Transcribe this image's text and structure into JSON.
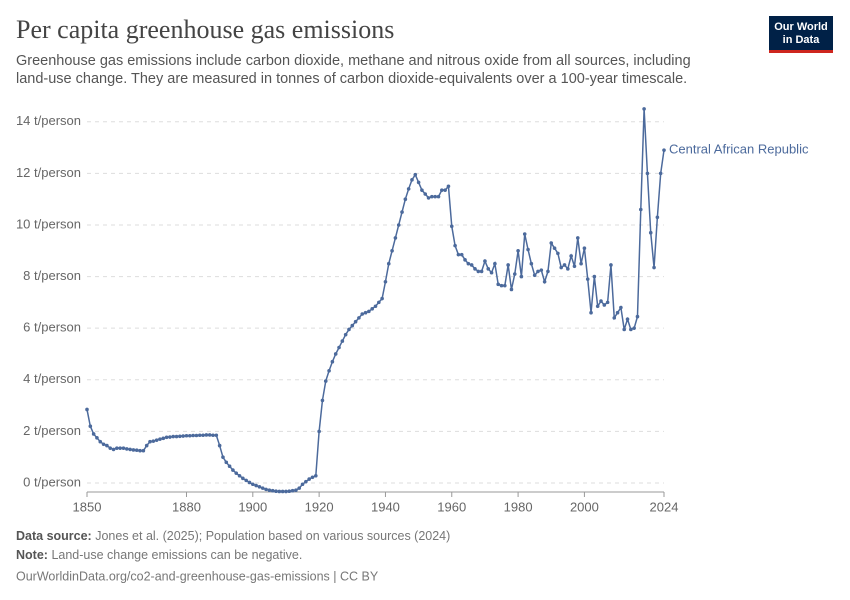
{
  "logo": [
    "Our World",
    "in Data"
  ],
  "chart_data": {
    "type": "line",
    "title": "Per capita greenhouse gas emissions",
    "subtitle": [
      "Greenhouse gas emissions include carbon dioxide, methane and nitrous oxide from all sources, including",
      "land-use change. They are measured in tonnes of carbon dioxide-equivalents over a 100-year timescale."
    ],
    "x": [
      1850,
      1851,
      1852,
      1853,
      1854,
      1855,
      1856,
      1857,
      1858,
      1859,
      1860,
      1861,
      1862,
      1863,
      1864,
      1865,
      1866,
      1867,
      1868,
      1869,
      1870,
      1871,
      1872,
      1873,
      1874,
      1875,
      1876,
      1877,
      1878,
      1879,
      1880,
      1881,
      1882,
      1883,
      1884,
      1885,
      1886,
      1887,
      1888,
      1889,
      1890,
      1891,
      1892,
      1893,
      1894,
      1895,
      1896,
      1897,
      1898,
      1899,
      1900,
      1901,
      1902,
      1903,
      1904,
      1905,
      1906,
      1907,
      1908,
      1909,
      1910,
      1911,
      1912,
      1913,
      1914,
      1915,
      1916,
      1917,
      1918,
      1919,
      1920,
      1921,
      1922,
      1923,
      1924,
      1925,
      1926,
      1927,
      1928,
      1929,
      1930,
      1931,
      1932,
      1933,
      1934,
      1935,
      1936,
      1937,
      1938,
      1939,
      1940,
      1941,
      1942,
      1943,
      1944,
      1945,
      1946,
      1947,
      1948,
      1949,
      1950,
      1951,
      1952,
      1953,
      1954,
      1955,
      1956,
      1957,
      1958,
      1959,
      1960,
      1961,
      1962,
      1963,
      1964,
      1965,
      1966,
      1967,
      1968,
      1969,
      1970,
      1971,
      1972,
      1973,
      1974,
      1975,
      1976,
      1977,
      1978,
      1979,
      1980,
      1981,
      1982,
      1983,
      1984,
      1985,
      1986,
      1987,
      1988,
      1989,
      1990,
      1991,
      1992,
      1993,
      1994,
      1995,
      1996,
      1997,
      1998,
      1999,
      2000,
      2001,
      2002,
      2003,
      2004,
      2005,
      2006,
      2007,
      2008,
      2009,
      2010,
      2011,
      2012,
      2013,
      2014,
      2015,
      2016,
      2017,
      2018,
      2019,
      2020,
      2021,
      2022,
      2023,
      2024
    ],
    "series": [
      {
        "name": "Central African Republic",
        "color": "#4c6a9c",
        "values": [
          2.85,
          2.2,
          1.9,
          1.75,
          1.6,
          1.5,
          1.45,
          1.35,
          1.3,
          1.35,
          1.35,
          1.35,
          1.32,
          1.3,
          1.28,
          1.27,
          1.25,
          1.25,
          1.45,
          1.6,
          1.62,
          1.66,
          1.7,
          1.73,
          1.77,
          1.78,
          1.8,
          1.8,
          1.81,
          1.82,
          1.83,
          1.83,
          1.84,
          1.84,
          1.85,
          1.85,
          1.86,
          1.86,
          1.85,
          1.85,
          1.45,
          1.0,
          0.8,
          0.65,
          0.5,
          0.38,
          0.28,
          0.18,
          0.1,
          0.02,
          -0.05,
          -0.1,
          -0.15,
          -0.2,
          -0.25,
          -0.28,
          -0.3,
          -0.32,
          -0.33,
          -0.33,
          -0.33,
          -0.32,
          -0.3,
          -0.28,
          -0.2,
          -0.05,
          0.05,
          0.15,
          0.22,
          0.28,
          2.0,
          3.2,
          3.95,
          4.35,
          4.7,
          5.0,
          5.25,
          5.5,
          5.75,
          5.95,
          6.1,
          6.25,
          6.4,
          6.55,
          6.6,
          6.65,
          6.75,
          6.85,
          7.0,
          7.15,
          7.8,
          8.5,
          9.0,
          9.5,
          10.0,
          10.5,
          11.0,
          11.4,
          11.75,
          11.95,
          11.65,
          11.35,
          11.2,
          11.05,
          11.1,
          11.1,
          11.1,
          11.35,
          11.35,
          11.5,
          9.95,
          9.2,
          8.85,
          8.85,
          8.65,
          8.5,
          8.45,
          8.3,
          8.2,
          8.2,
          8.6,
          8.3,
          8.15,
          8.5,
          7.7,
          7.65,
          7.65,
          8.45,
          7.5,
          8.1,
          9.0,
          8.0,
          9.65,
          9.05,
          8.5,
          8.05,
          8.2,
          8.25,
          7.8,
          8.2,
          9.3,
          9.1,
          8.9,
          8.35,
          8.45,
          8.3,
          8.8,
          8.4,
          9.5,
          8.5,
          9.1,
          7.9,
          6.6,
          8.0,
          6.85,
          7.05,
          6.9,
          7.0,
          8.45,
          6.4,
          6.6,
          6.8,
          5.95,
          6.35,
          5.95,
          6.0,
          6.45,
          10.6,
          14.5,
          12.0,
          9.7,
          8.35,
          10.3,
          12.0,
          12.9
        ]
      }
    ],
    "xlim": [
      1850,
      2024
    ],
    "xticks": [
      1850,
      1880,
      1900,
      1920,
      1940,
      1960,
      1980,
      2000,
      2024
    ],
    "ylim": [
      -0.35,
      14.5
    ],
    "yticks": [
      {
        "value": 0,
        "label": "0 t/person"
      },
      {
        "value": 2,
        "label": "2 t/person"
      },
      {
        "value": 4,
        "label": "4 t/person"
      },
      {
        "value": 6,
        "label": "6 t/person"
      },
      {
        "value": 8,
        "label": "8 t/person"
      },
      {
        "value": 10,
        "label": "10 t/person"
      },
      {
        "value": 12,
        "label": "12 t/person"
      },
      {
        "value": 14,
        "label": "14 t/person"
      }
    ],
    "grid": true,
    "footer": {
      "source_label": "Data source:",
      "source": "Jones et al. (2025); Population based on various sources (2024)",
      "note_label": "Note:",
      "note": "Land-use change emissions can be negative.",
      "url": "OurWorldinData.org/co2-and-greenhouse-gas-emissions | CC BY"
    }
  }
}
